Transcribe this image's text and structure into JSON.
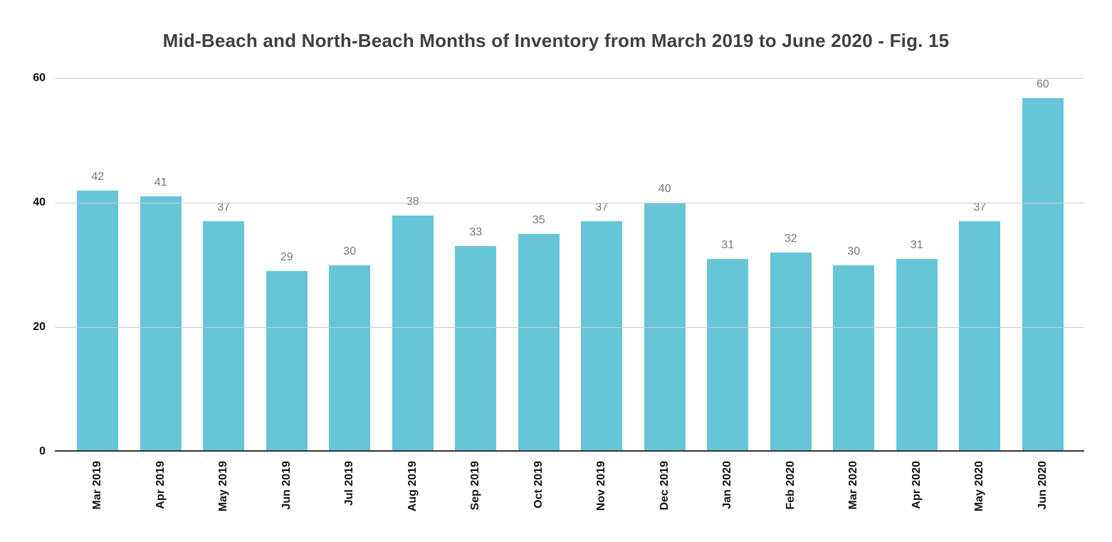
{
  "page": {
    "background": "#ffffff"
  },
  "chart_data": {
    "type": "bar",
    "title": "Mid-Beach and North-Beach Months of Inventory from March 2019 to June 2020 - Fig. 15",
    "categories": [
      "Mar 2019",
      "Apr 2019",
      "May 2019",
      "Jun 2019",
      "Jul 2019",
      "Aug 2019",
      "Sep 2019",
      "Oct 2019",
      "Nov 2019",
      "Dec 2019",
      "Jan 2020",
      "Feb 2020",
      "Mar 2020",
      "Apr 2020",
      "May 2020",
      "Jun 2020"
    ],
    "values": [
      42,
      41,
      37,
      29,
      30,
      38,
      33,
      35,
      37,
      40,
      31,
      32,
      30,
      31,
      37,
      60
    ],
    "xlabel": "",
    "ylabel": "",
    "ylim": [
      0,
      60
    ],
    "yticks": [
      0,
      20,
      40,
      60
    ],
    "grid": true,
    "legend_position": "none",
    "data_labels": true,
    "colors": {
      "bar": "#66C6D8",
      "value_label": "#757575",
      "axis_label": "#111111",
      "title": "#404040",
      "gridline": "#cccccc",
      "baseline": "#333333"
    }
  }
}
